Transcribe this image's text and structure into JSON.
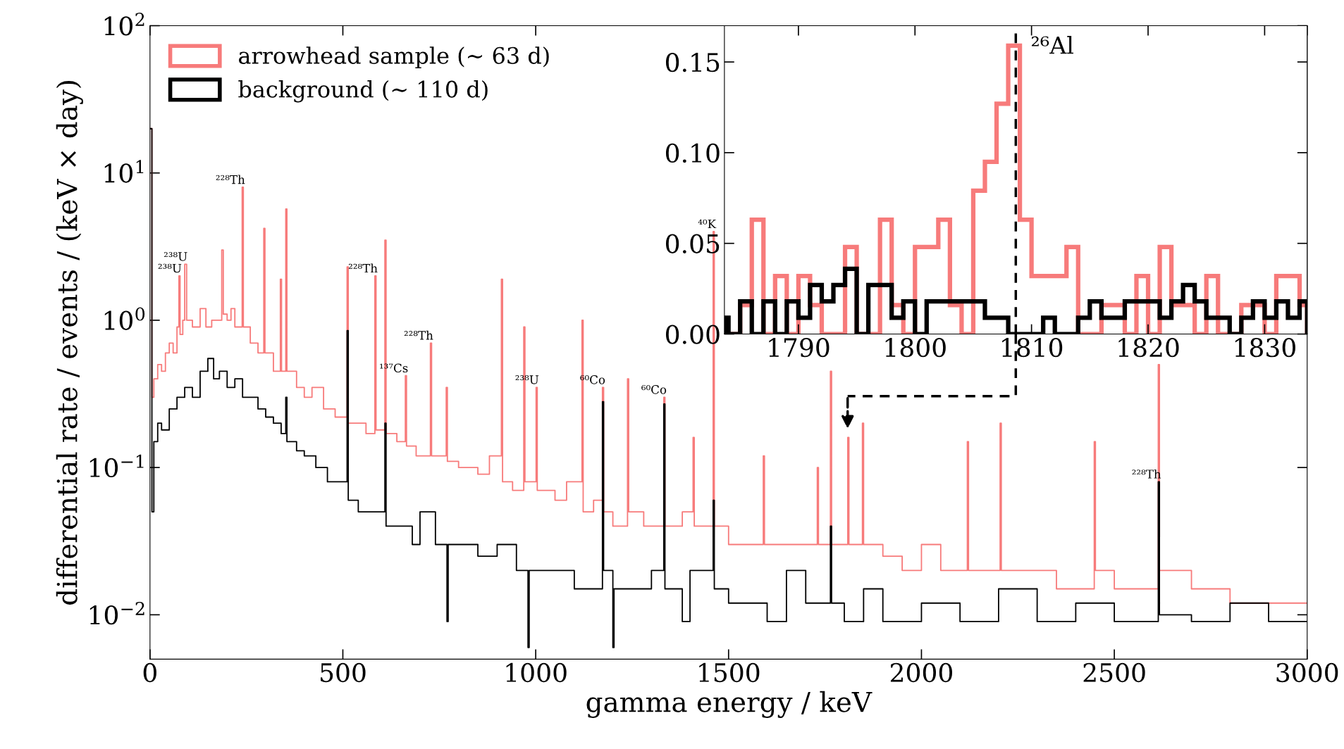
{
  "chart_data": [
    {
      "type": "step",
      "xlabel": "gamma energy / keV",
      "ylabel": "differential rate / events / (keV × day)",
      "log": "y",
      "legend": "top left",
      "xlim": [
        0,
        3000
      ],
      "xticks": [
        0,
        500,
        1000,
        1500,
        2000,
        2500,
        3000
      ],
      "ylim": [
        0.005,
        100
      ],
      "yticks": [
        {
          "value": 0.01,
          "label": "10$^{−2}$"
        },
        {
          "value": 0.1,
          "label": "10$^{−1}$"
        },
        {
          "value": 1,
          "label": "10$^{0}$"
        },
        {
          "value": 10,
          "label": "10$^{1}$"
        },
        {
          "value": 100,
          "label": "10$^{2}$"
        }
      ],
      "series": [
        {
          "name": "arrowhead sample (∼ 63 d)",
          "color": "#f77b7b",
          "x": [
            0,
            3,
            5,
            10,
            20,
            30,
            40,
            50,
            60,
            70,
            75,
            78,
            85,
            90,
            95,
            110,
            130,
            145,
            160,
            186,
            190,
            200,
            210,
            220,
            239,
            242,
            260,
            280,
            295,
            298,
            320,
            338,
            341,
            352,
            355,
            380,
            400,
            420,
            450,
            480,
            511,
            514,
            540,
            560,
            583,
            586,
            609,
            612,
            640,
            662,
            665,
            690,
            727,
            730,
            768,
            771,
            800,
            850,
            880,
            911,
            914,
            940,
            969,
            972,
            1001,
            1004,
            1050,
            1080,
            1120,
            1123,
            1150,
            1173,
            1176,
            1200,
            1238,
            1241,
            1280,
            1332,
            1335,
            1380,
            1408,
            1411,
            1460,
            1463,
            1500,
            1590,
            1593,
            1650,
            1730,
            1733,
            1764,
            1767,
            1809,
            1812,
            1847,
            1850,
            1900,
            1950,
            2000,
            2050,
            2119,
            2122,
            2204,
            2207,
            2300,
            2350,
            2448,
            2451,
            2500,
            2614,
            2617,
            2700,
            2800,
            2900,
            3000
          ],
          "values": [
            20,
            20,
            0.3,
            0.4,
            0.5,
            0.45,
            0.6,
            0.7,
            0.6,
            0.9,
            2.0,
            0.8,
            1.0,
            2.4,
            1.0,
            0.9,
            1.2,
            0.9,
            1.0,
            3.0,
            1.1,
            1.0,
            1.2,
            0.9,
            8.0,
            0.9,
            0.7,
            0.6,
            4.2,
            0.6,
            0.45,
            1.9,
            0.45,
            5.7,
            0.45,
            0.35,
            0.3,
            0.35,
            0.25,
            0.22,
            2.3,
            0.2,
            0.2,
            0.17,
            2.0,
            0.18,
            3.5,
            0.17,
            0.15,
            0.42,
            0.14,
            0.12,
            0.7,
            0.12,
            0.35,
            0.11,
            0.1,
            0.09,
            0.12,
            1.9,
            0.08,
            0.07,
            0.9,
            0.08,
            0.35,
            0.07,
            0.06,
            0.08,
            1.0,
            0.05,
            0.06,
            0.35,
            0.05,
            0.04,
            0.4,
            0.05,
            0.04,
            0.3,
            0.04,
            0.05,
            0.16,
            0.04,
            4.0,
            0.04,
            0.03,
            0.12,
            0.03,
            0.03,
            0.1,
            0.03,
            0.45,
            0.03,
            0.16,
            0.03,
            0.2,
            0.03,
            0.025,
            0.02,
            0.03,
            0.02,
            0.15,
            0.02,
            0.2,
            0.02,
            0.02,
            0.015,
            0.15,
            0.02,
            0.015,
            0.5,
            0.02,
            0.015,
            0.012,
            0.012,
            0.012
          ]
        },
        {
          "name": "background (∼ 110 d)",
          "color": "#000000",
          "x": [
            0,
            3,
            5,
            10,
            20,
            30,
            50,
            70,
            90,
            110,
            130,
            150,
            165,
            180,
            200,
            220,
            240,
            260,
            280,
            300,
            320,
            340,
            352,
            355,
            380,
            400,
            430,
            460,
            490,
            511,
            514,
            540,
            570,
            609,
            612,
            640,
            680,
            700,
            740,
            770,
            773,
            800,
            850,
            900,
            950,
            980,
            983,
            1000,
            1050,
            1100,
            1173,
            1176,
            1200,
            1203,
            1250,
            1300,
            1332,
            1335,
            1380,
            1400,
            1460,
            1463,
            1500,
            1600,
            1650,
            1700,
            1764,
            1767,
            1800,
            1850,
            1900,
            2000,
            2100,
            2200,
            2300,
            2400,
            2500,
            2614,
            2617,
            2700,
            2800,
            2900,
            3000
          ],
          "values": [
            20,
            20,
            0.05,
            0.15,
            0.2,
            0.18,
            0.25,
            0.3,
            0.35,
            0.3,
            0.45,
            0.55,
            0.4,
            0.45,
            0.35,
            0.4,
            0.3,
            0.3,
            0.25,
            0.22,
            0.2,
            0.17,
            0.3,
            0.15,
            0.13,
            0.12,
            0.1,
            0.08,
            0.08,
            0.85,
            0.06,
            0.05,
            0.05,
            0.2,
            0.04,
            0.04,
            0.03,
            0.05,
            0.03,
            0.009,
            0.03,
            0.03,
            0.025,
            0.03,
            0.02,
            0.006,
            0.02,
            0.02,
            0.02,
            0.015,
            0.28,
            0.02,
            0.006,
            0.015,
            0.015,
            0.02,
            0.27,
            0.015,
            0.009,
            0.02,
            0.06,
            0.015,
            0.012,
            0.009,
            0.02,
            0.012,
            0.04,
            0.012,
            0.009,
            0.015,
            0.009,
            0.012,
            0.009,
            0.015,
            0.009,
            0.012,
            0.009,
            0.08,
            0.01,
            0.009,
            0.012,
            0.009,
            0.009
          ]
        }
      ],
      "annotations": [
        {
          "text": "²³⁸U",
          "x": 75,
          "y": 2.0
        },
        {
          "text": "²³⁸U",
          "x": 90,
          "y": 2.4
        },
        {
          "text": "²²⁸Th",
          "x": 239,
          "y": 8.0
        },
        {
          "text": "²²⁸Th",
          "x": 583,
          "y": 2.0
        },
        {
          "text": "¹³⁷Cs",
          "x": 662,
          "y": 0.42
        },
        {
          "text": "²²⁸Th",
          "x": 727,
          "y": 0.7
        },
        {
          "text": "²³⁸U",
          "x": 1001,
          "y": 0.35
        },
        {
          "text": "⁶⁰Co",
          "x": 1173,
          "y": 0.35
        },
        {
          "text": "⁶⁰Co",
          "x": 1332,
          "y": 0.3
        },
        {
          "text": "⁴⁰K",
          "x": 1460,
          "y": 4.0
        },
        {
          "text": "²²⁸Th",
          "x": 2614,
          "y": 0.08
        }
      ]
    },
    {
      "type": "histogram",
      "bins": [
        1783.65,
        1784,
        1785,
        1786,
        1787,
        1788,
        1789,
        1790,
        1791,
        1792,
        1793,
        1794,
        1795,
        1796,
        1797,
        1798,
        1799,
        1800,
        1801,
        1802,
        1803,
        1804,
        1805,
        1806,
        1807,
        1808,
        1809,
        1810,
        1811,
        1812,
        1813,
        1814,
        1815,
        1816,
        1817,
        1818,
        1819,
        1820,
        1821,
        1822,
        1823,
        1824,
        1825,
        1826,
        1827,
        1828,
        1829,
        1830,
        1831,
        1832,
        1833,
        1833.65
      ],
      "xlim": [
        1783.65,
        1833.65
      ],
      "xticks": [
        1790,
        1800,
        1810,
        1820,
        1830
      ],
      "ylim": [
        0,
        0.17
      ],
      "yticks": [
        {
          "value": 0,
          "label": "0.00"
        },
        {
          "value": 0.05,
          "label": "0.05"
        },
        {
          "value": 0.1,
          "label": "0.10"
        },
        {
          "value": 0.15,
          "label": "0.15"
        }
      ],
      "series": [
        {
          "color": "#f77b7b",
          "values": [
            0,
            0,
            0.016,
            0.063,
            0,
            0.032,
            0,
            0.032,
            0.016,
            0,
            0,
            0.048,
            0,
            0,
            0.063,
            0.016,
            0,
            0.048,
            0.048,
            0.063,
            0.016,
            0,
            0.079,
            0.095,
            0.127,
            0.159,
            0.063,
            0.032,
            0.032,
            0.032,
            0.048,
            0,
            0,
            0.016,
            0.016,
            0,
            0.032,
            0,
            0.048,
            0.016,
            0.016,
            0,
            0.032,
            0,
            0,
            0.016,
            0.016,
            0,
            0.032,
            0.032,
            0.016
          ]
        },
        {
          "color": "#000000",
          "values": [
            0.009,
            0,
            0.018,
            0,
            0.018,
            0,
            0.018,
            0.009,
            0.027,
            0.018,
            0.027,
            0.036,
            0,
            0.027,
            0.027,
            0.009,
            0.018,
            0,
            0.018,
            0.018,
            0.018,
            0.018,
            0.018,
            0.009,
            0.009,
            0,
            0,
            0,
            0.009,
            0,
            0,
            0.009,
            0.018,
            0.009,
            0.009,
            0.018,
            0.018,
            0.018,
            0.009,
            0.018,
            0.027,
            0.018,
            0.009,
            0.009,
            0,
            0.009,
            0.018,
            0.009,
            0.018,
            0.009,
            0.018
          ]
        }
      ],
      "ref_lines": [
        {
          "axis": "x",
          "value": 1808.65,
          "label": "²⁶Al",
          "color": "#000000",
          "line_style": "dashed"
        }
      ]
    }
  ]
}
